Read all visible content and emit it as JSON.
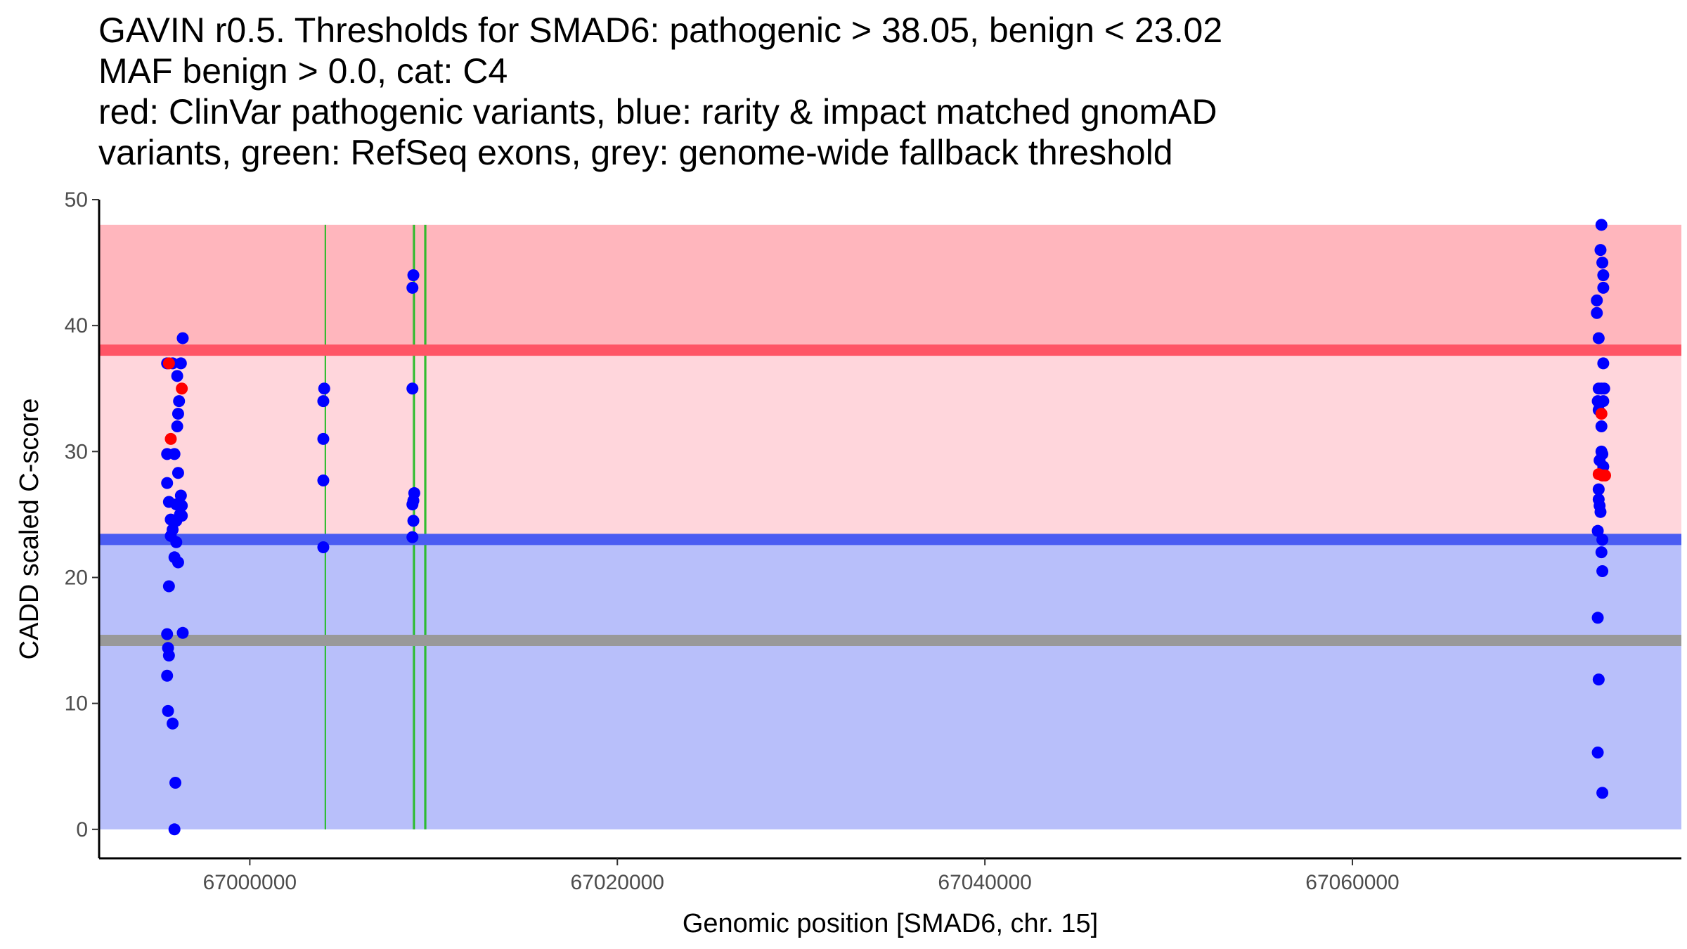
{
  "title_lines": [
    "GAVIN r0.5. Thresholds for SMAD6: pathogenic > 38.05, benign < 23.02",
    "MAF benign > 0.0, cat: C4",
    "red: ClinVar pathogenic variants, blue: rarity & impact matched gnomAD",
    "variants, green: RefSeq exons, grey: genome-wide fallback threshold"
  ],
  "chart_data": {
    "type": "scatter",
    "title": "GAVIN r0.5. Thresholds for SMAD6: pathogenic > 38.05, benign < 23.02",
    "xlabel": "Genomic position [SMAD6, chr. 15]",
    "ylabel": "CADD scaled C-score",
    "xlim": [
      66991800,
      67077900
    ],
    "ylim": [
      -2.3,
      50
    ],
    "x_ticks": [
      67000000,
      67020000,
      67040000,
      67060000
    ],
    "x_tick_labels": [
      "67000000",
      "67020000",
      "67040000",
      "67060000"
    ],
    "y_ticks": [
      0,
      10,
      20,
      30,
      40,
      50
    ],
    "y_tick_labels": [
      "0",
      "10",
      "20",
      "30",
      "40",
      "50"
    ],
    "thresholds": {
      "pathogenic": 38.05,
      "benign": 23.02,
      "fallback": 15,
      "region_max": 48,
      "region_min": 0
    },
    "colors": {
      "pathogenic_region": "#ffb6bd",
      "mid_region": "#ffd6dc",
      "benign_region": "#b8bffa",
      "pathogenic_line": "#ff5566",
      "benign_line": "#4a5cf2",
      "fallback_line": "#999999",
      "exon": "#22bb22",
      "gnomad_point": "#0000ff",
      "clinvar_point": "#ff0000"
    },
    "exons": [
      [
        67004100,
        67004120
      ],
      [
        67008900,
        67008960
      ],
      [
        67009520,
        67009580
      ]
    ],
    "series": [
      {
        "name": "gnomAD",
        "color": "#0000ff",
        "points": [
          [
            66995500,
            37
          ],
          [
            66995800,
            37
          ],
          [
            66996050,
            36
          ],
          [
            66996150,
            34
          ],
          [
            66996100,
            33
          ],
          [
            66996050,
            32
          ],
          [
            66995500,
            29.8
          ],
          [
            66995900,
            29.8
          ],
          [
            66996100,
            28.3
          ],
          [
            66995500,
            27.5
          ],
          [
            66996250,
            26.5
          ],
          [
            66995600,
            26
          ],
          [
            66996000,
            25.8
          ],
          [
            66996300,
            25.7
          ],
          [
            66996200,
            25
          ],
          [
            66995700,
            24.6
          ],
          [
            66996000,
            24.5
          ],
          [
            66996300,
            24.9
          ],
          [
            66995800,
            23.8
          ],
          [
            66995700,
            23.3
          ],
          [
            66996000,
            22.8
          ],
          [
            66995900,
            21.6
          ],
          [
            66996100,
            21.2
          ],
          [
            66995600,
            19.3
          ],
          [
            66995500,
            15.5
          ],
          [
            66996350,
            15.6
          ],
          [
            66995550,
            14.4
          ],
          [
            66995600,
            13.8
          ],
          [
            66995500,
            12.2
          ],
          [
            66995550,
            9.4
          ],
          [
            66995800,
            8.4
          ],
          [
            66995950,
            3.7
          ],
          [
            66995900,
            0
          ],
          [
            66996350,
            39
          ],
          [
            66996250,
            37
          ],
          [
            67004050,
            35
          ],
          [
            67004000,
            34
          ],
          [
            67004000,
            31
          ],
          [
            67004000,
            27.7
          ],
          [
            67004000,
            22.4
          ],
          [
            67008900,
            44
          ],
          [
            67008850,
            43
          ],
          [
            67008850,
            35
          ],
          [
            67008950,
            26.7
          ],
          [
            67008900,
            26.1
          ],
          [
            67008850,
            25.8
          ],
          [
            67008900,
            24.5
          ],
          [
            67008850,
            23.2
          ],
          [
            67073550,
            48
          ],
          [
            67073500,
            46
          ],
          [
            67073600,
            45
          ],
          [
            67073650,
            44
          ],
          [
            67073650,
            43
          ],
          [
            67073300,
            42
          ],
          [
            67073300,
            41
          ],
          [
            67073400,
            39
          ],
          [
            67073650,
            37
          ],
          [
            67073400,
            35
          ],
          [
            67073550,
            35
          ],
          [
            67073700,
            35
          ],
          [
            67073350,
            34
          ],
          [
            67073650,
            34
          ],
          [
            67073400,
            33.3
          ],
          [
            67073550,
            32
          ],
          [
            67073550,
            30
          ],
          [
            67073600,
            29.8
          ],
          [
            67073450,
            29.3
          ],
          [
            67073650,
            28.8
          ],
          [
            67073400,
            27
          ],
          [
            67073400,
            26.2
          ],
          [
            67073450,
            25.7
          ],
          [
            67073500,
            25.2
          ],
          [
            67073350,
            23.7
          ],
          [
            67073600,
            23
          ],
          [
            67073550,
            22
          ],
          [
            67073600,
            20.5
          ],
          [
            67073350,
            16.8
          ],
          [
            67073400,
            11.9
          ],
          [
            67073350,
            6.1
          ],
          [
            67073600,
            2.9
          ]
        ]
      },
      {
        "name": "ClinVar pathogenic",
        "color": "#ff0000",
        "points": [
          [
            66995600,
            37
          ],
          [
            66996300,
            35
          ],
          [
            66995700,
            31
          ],
          [
            67073400,
            28.2
          ],
          [
            67073600,
            28.1
          ],
          [
            67073750,
            28.1
          ],
          [
            67073550,
            33
          ]
        ]
      }
    ]
  }
}
